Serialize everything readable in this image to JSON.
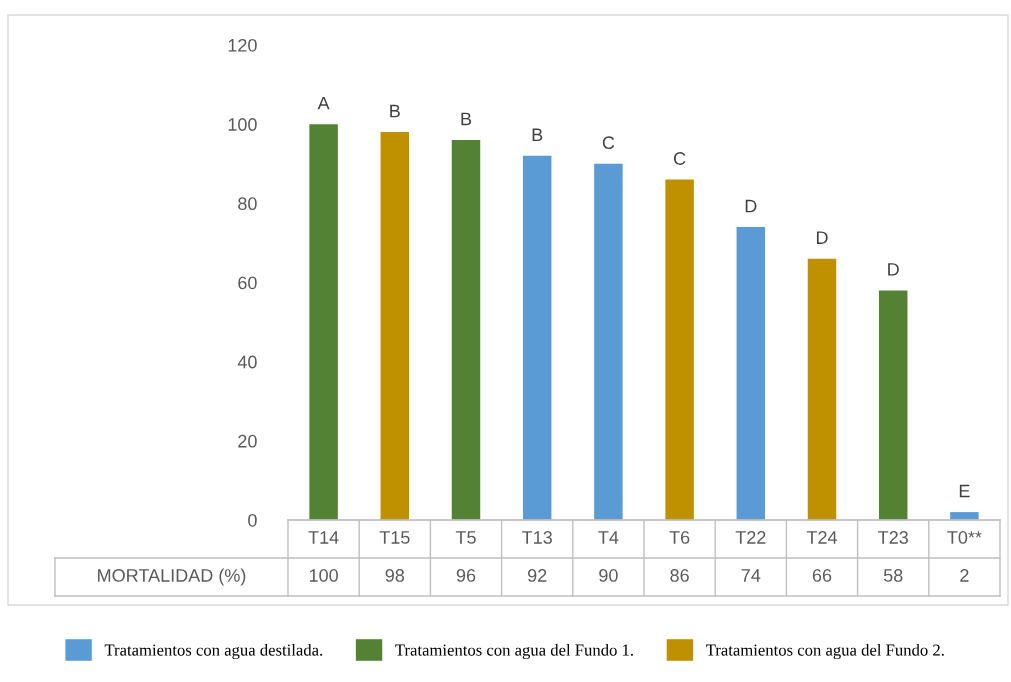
{
  "chart_data": {
    "type": "bar",
    "categories": [
      "T14",
      "T15",
      "T5",
      "T13",
      "T4",
      "T6",
      "T22",
      "T24",
      "T23",
      "T0**"
    ],
    "series": [
      {
        "name": "Tratamientos con agua destilada.",
        "color": "#5b9bd5",
        "values": [
          null,
          null,
          null,
          92,
          90,
          null,
          74,
          null,
          null,
          2
        ]
      },
      {
        "name": "Tratamientos con agua del Fundo 1.",
        "color": "#548235",
        "values": [
          100,
          null,
          96,
          null,
          null,
          null,
          null,
          null,
          58,
          null
        ]
      },
      {
        "name": "Tratamientos con agua del Fundo 2.",
        "color": "#bf9000",
        "values": [
          null,
          98,
          null,
          null,
          null,
          86,
          null,
          66,
          null,
          null
        ]
      }
    ],
    "ylim": [
      0,
      120
    ],
    "yticks": [
      0,
      20,
      40,
      60,
      80,
      100,
      120
    ],
    "grid": false,
    "legend": "bottom",
    "data_labels": true,
    "annotations": [
      "MORTALIDAD (%)",
      {
        "text": "A",
        "x": "T14",
        "y": 100
      },
      {
        "text": "B",
        "x": "T15",
        "y": 98
      },
      {
        "text": "B",
        "x": "T5",
        "y": 96
      },
      {
        "text": "B",
        "x": "T13",
        "y": 92
      },
      {
        "text": "C",
        "x": "T4",
        "y": 90
      },
      {
        "text": "C",
        "x": "T6",
        "y": 86
      },
      {
        "text": "D",
        "x": "T22",
        "y": 74
      },
      {
        "text": "D",
        "x": "T24",
        "y": 66
      },
      {
        "text": "D",
        "x": "T23",
        "y": 58
      },
      {
        "text": "E",
        "x": "T0**",
        "y": 2
      }
    ]
  }
}
